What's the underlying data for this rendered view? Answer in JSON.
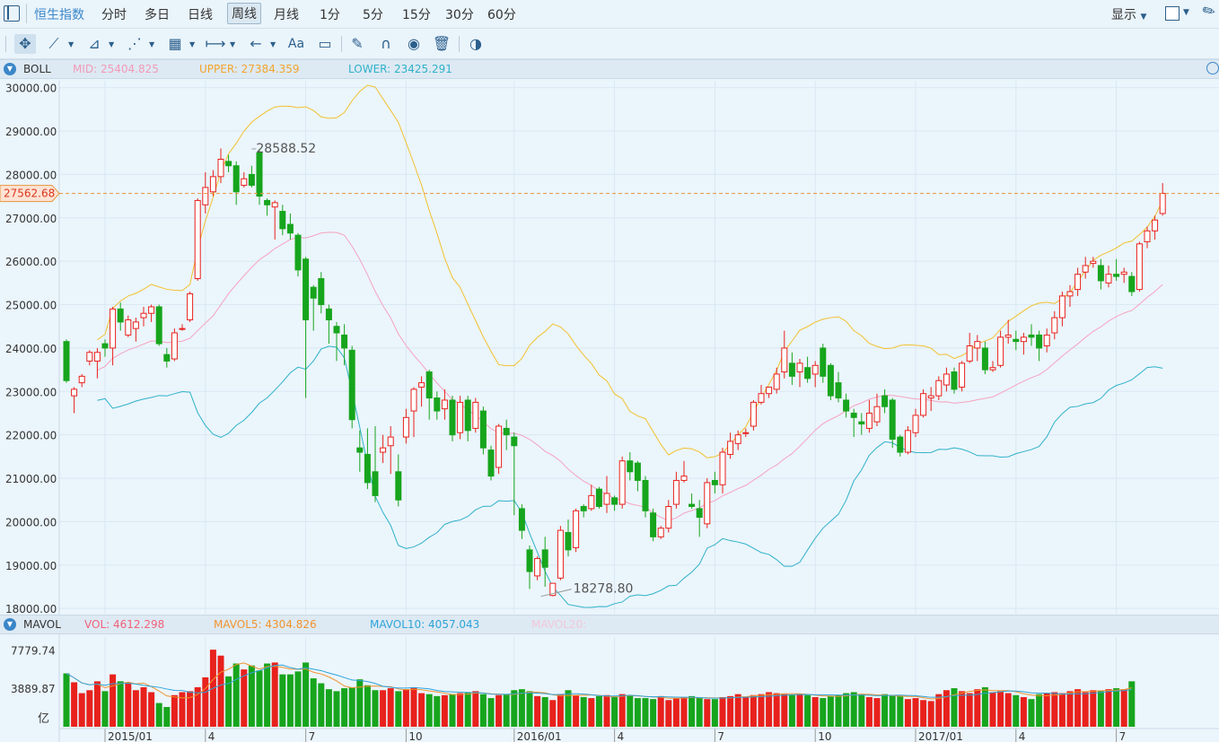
{
  "header": {
    "tabs": [
      {
        "label": "恒生指数",
        "active": false
      },
      {
        "label": "分时",
        "active": false
      },
      {
        "label": "多日",
        "active": false
      },
      {
        "label": "日线",
        "active": false
      },
      {
        "label": "周线",
        "active": true
      },
      {
        "label": "月线",
        "active": false
      },
      {
        "label": "1分",
        "active": false
      },
      {
        "label": "5分",
        "active": false
      },
      {
        "label": "15分",
        "active": false
      },
      {
        "label": "30分",
        "active": false
      },
      {
        "label": "60分",
        "active": false
      }
    ],
    "display_label": "显示"
  },
  "toolbar": {
    "text_tool_label": "Aa",
    "icons": [
      "move-icon",
      "line-icon",
      "polyline-icon",
      "wave-icon",
      "fibonacci-icon",
      "range-icon",
      "arrow-icon",
      "text-icon",
      "comment-icon",
      "pen-icon",
      "magnet-icon",
      "eye-icon",
      "trash-icon",
      "compare-icon"
    ]
  },
  "boll_legend": {
    "name": "BOLL",
    "mid": "MID: 25404.825",
    "upper": "UPPER: 27384.359",
    "lower": "LOWER: 23425.291"
  },
  "mavol_legend": {
    "name": "MAVOL",
    "vol": "VOL: 4612.298",
    "mavol5": "MAVOL5: 4304.826",
    "mavol10": "MAVOL10: 4057.043",
    "mavol20": "MAVOL20:"
  },
  "colors": {
    "up": "#e8211c",
    "down": "#17a51d",
    "mid": "#f5a3c0",
    "upper": "#f2c12e",
    "lower": "#2eb2c8",
    "mavol5": "#f2932e",
    "mavol10": "#2ea4d8"
  },
  "chart_data": {
    "type": "candlestick",
    "y_ticks": [
      "30000.00",
      "29000.00",
      "28000.00",
      "27000.00",
      "26000.00",
      "25000.00",
      "24000.00",
      "23000.00",
      "22000.00",
      "21000.00",
      "20000.00",
      "19000.00",
      "18000.00"
    ],
    "ylim": [
      17900,
      30200
    ],
    "x_ticks": [
      {
        "label": "2015/01",
        "index": 5
      },
      {
        "label": "4",
        "index": 18
      },
      {
        "label": "7",
        "index": 31
      },
      {
        "label": "10",
        "index": 44
      },
      {
        "label": "2016/01",
        "index": 58
      },
      {
        "label": "4",
        "index": 71
      },
      {
        "label": "7",
        "index": 84
      },
      {
        "label": "10",
        "index": 97
      },
      {
        "label": "2017/01",
        "index": 110
      },
      {
        "label": "4",
        "index": 123
      },
      {
        "label": "7",
        "index": 136
      }
    ],
    "current_price_label": "27562.68",
    "current_price": 27562.68,
    "high_label": "28588.52",
    "high_value": 28588.52,
    "high_index": 24,
    "low_label": "18278.80",
    "low_value": 18278.8,
    "low_index": 61,
    "candles": [
      [
        24150,
        23250,
        24200,
        23200
      ],
      [
        22900,
        23050,
        23100,
        22500
      ],
      [
        23200,
        23350,
        23400,
        23100
      ],
      [
        23700,
        23900,
        23950,
        23600
      ],
      [
        23700,
        23900,
        24000,
        23300
      ],
      [
        24100,
        24000,
        24200,
        23800
      ],
      [
        24000,
        24900,
        24950,
        23600
      ],
      [
        24900,
        24600,
        25050,
        24400
      ],
      [
        24300,
        24650,
        24750,
        24250
      ],
      [
        24450,
        24600,
        24700,
        24150
      ],
      [
        24700,
        24800,
        24950,
        24500
      ],
      [
        24800,
        24950,
        25000,
        24600
      ],
      [
        24950,
        24100,
        25000,
        24050
      ],
      [
        23850,
        23700,
        24000,
        23550
      ],
      [
        23750,
        24350,
        24450,
        23700
      ],
      [
        24450,
        24450,
        24550,
        24400
      ],
      [
        24650,
        25250,
        25300,
        24600
      ],
      [
        25600,
        27400,
        27450,
        25550
      ],
      [
        27300,
        27700,
        28050,
        27100
      ],
      [
        27600,
        27950,
        28100,
        27500
      ],
      [
        27950,
        28350,
        28600,
        27800
      ],
      [
        28300,
        28200,
        28450,
        28050
      ],
      [
        28200,
        27600,
        28300,
        27300
      ],
      [
        27750,
        27900,
        28050,
        27700
      ],
      [
        28000,
        27750,
        28200,
        27700
      ],
      [
        28500,
        27500,
        28589,
        27300
      ],
      [
        27400,
        27300,
        27450,
        27050
      ],
      [
        27250,
        27350,
        27400,
        26500
      ],
      [
        27150,
        26750,
        27300,
        26600
      ],
      [
        26850,
        26650,
        27100,
        26500
      ],
      [
        26600,
        25800,
        26650,
        25650
      ],
      [
        26050,
        24650,
        26100,
        22850
      ],
      [
        25400,
        25150,
        25450,
        24400
      ],
      [
        25600,
        25000,
        25750,
        24800
      ],
      [
        24900,
        24650,
        25000,
        24100
      ],
      [
        24500,
        24350,
        24600,
        23700
      ],
      [
        24300,
        24000,
        24550,
        23600
      ],
      [
        23950,
        22350,
        24050,
        22150
      ],
      [
        21700,
        21600,
        22100,
        21150
      ],
      [
        21550,
        20900,
        22150,
        20750
      ],
      [
        21150,
        20600,
        22200,
        20450
      ],
      [
        21600,
        21700,
        22000,
        21350
      ],
      [
        21750,
        21950,
        22200,
        21100
      ],
      [
        21150,
        20500,
        21550,
        20350
      ],
      [
        21950,
        22400,
        22600,
        21800
      ],
      [
        22550,
        23050,
        23100,
        21950
      ],
      [
        23100,
        23200,
        23350,
        22650
      ],
      [
        23450,
        22850,
        23500,
        22350
      ],
      [
        22850,
        22550,
        23000,
        22350
      ],
      [
        22600,
        22800,
        23050,
        22350
      ],
      [
        22800,
        22000,
        22900,
        21850
      ],
      [
        22050,
        22750,
        22900,
        21900
      ],
      [
        22800,
        22100,
        22900,
        21850
      ],
      [
        22150,
        22750,
        22850,
        22050
      ],
      [
        22550,
        21700,
        22650,
        21550
      ],
      [
        21650,
        21050,
        21750,
        20950
      ],
      [
        21250,
        22200,
        22250,
        21100
      ],
      [
        22150,
        22000,
        22350,
        21650
      ],
      [
        21950,
        21750,
        22050,
        20150
      ],
      [
        20300,
        19800,
        20400,
        19600
      ],
      [
        19350,
        18850,
        19450,
        18450
      ],
      [
        18750,
        19150,
        19200,
        18650
      ],
      [
        19350,
        18950,
        19650,
        18500
      ],
      [
        18300,
        18580,
        18590,
        18279
      ],
      [
        18700,
        19800,
        19900,
        18650
      ],
      [
        19750,
        19350,
        20050,
        19200
      ],
      [
        19400,
        20250,
        20300,
        19300
      ],
      [
        20350,
        20250,
        20400,
        20100
      ],
      [
        20300,
        20600,
        20850,
        20250
      ],
      [
        20750,
        20350,
        20800,
        20300
      ],
      [
        20400,
        20650,
        21050,
        20200
      ],
      [
        20550,
        20400,
        20600,
        20250
      ],
      [
        20400,
        21400,
        21500,
        20300
      ],
      [
        21400,
        21150,
        21600,
        20950
      ],
      [
        21350,
        20950,
        21400,
        20700
      ],
      [
        20950,
        20250,
        21050,
        20100
      ],
      [
        20200,
        19650,
        20300,
        19550
      ],
      [
        19650,
        19850,
        19900,
        19600
      ],
      [
        19850,
        20350,
        20500,
        19750
      ],
      [
        20400,
        20950,
        21150,
        20300
      ],
      [
        20950,
        21050,
        21400,
        20900
      ],
      [
        20400,
        20350,
        20650,
        20300
      ],
      [
        20300,
        20100,
        20500,
        19650
      ],
      [
        19950,
        20900,
        21000,
        19850
      ],
      [
        20950,
        20850,
        21150,
        20650
      ],
      [
        20850,
        21600,
        21700,
        20650
      ],
      [
        21550,
        21850,
        22050,
        21450
      ],
      [
        21800,
        22000,
        22100,
        21650
      ],
      [
        22050,
        22050,
        22150,
        21950
      ],
      [
        22200,
        22750,
        22800,
        22100
      ],
      [
        22750,
        22950,
        23150,
        22700
      ],
      [
        22950,
        23100,
        23100,
        22850
      ],
      [
        23050,
        23400,
        23550,
        22950
      ],
      [
        23450,
        24000,
        24400,
        23300
      ],
      [
        23650,
        23350,
        23900,
        23150
      ],
      [
        23450,
        23650,
        23750,
        23100
      ],
      [
        23550,
        23300,
        23800,
        23200
      ],
      [
        23400,
        23600,
        23700,
        23100
      ],
      [
        24000,
        23350,
        24100,
        23200
      ],
      [
        23600,
        22900,
        23650,
        22800
      ],
      [
        23200,
        22850,
        23450,
        22750
      ],
      [
        22800,
        22550,
        22950,
        22400
      ],
      [
        22500,
        22400,
        22600,
        21950
      ],
      [
        22300,
        22250,
        22500,
        22000
      ],
      [
        22150,
        22500,
        22800,
        22050
      ],
      [
        22300,
        22650,
        22950,
        22200
      ],
      [
        22900,
        22650,
        23050,
        22500
      ],
      [
        22800,
        21900,
        22850,
        21700
      ],
      [
        21950,
        21600,
        22000,
        21500
      ],
      [
        21600,
        22100,
        22200,
        21550
      ],
      [
        22050,
        22450,
        22600,
        21950
      ],
      [
        22450,
        22950,
        23050,
        22400
      ],
      [
        22850,
        22900,
        23100,
        22550
      ],
      [
        22900,
        23250,
        23350,
        22800
      ],
      [
        23150,
        23400,
        23550,
        23000
      ],
      [
        23450,
        23050,
        23550,
        22950
      ],
      [
        23100,
        23650,
        23700,
        23000
      ],
      [
        23700,
        24050,
        24350,
        23650
      ],
      [
        24000,
        24150,
        24300,
        23700
      ],
      [
        24000,
        23500,
        24150,
        23400
      ],
      [
        23500,
        23550,
        23700,
        23450
      ],
      [
        23600,
        24250,
        24400,
        23550
      ],
      [
        24250,
        24300,
        24650,
        24100
      ],
      [
        24200,
        24150,
        24400,
        23950
      ],
      [
        24150,
        24250,
        24350,
        23850
      ],
      [
        24300,
        24250,
        24550,
        24050
      ],
      [
        24300,
        24000,
        24400,
        23700
      ],
      [
        24050,
        24300,
        24450,
        23900
      ],
      [
        24350,
        24700,
        24850,
        24200
      ],
      [
        24700,
        25200,
        25300,
        24500
      ],
      [
        25200,
        25300,
        25450,
        24950
      ],
      [
        25350,
        25700,
        25850,
        25200
      ],
      [
        25750,
        25900,
        26100,
        25600
      ],
      [
        25950,
        26000,
        26100,
        25850
      ],
      [
        25900,
        25550,
        26050,
        25350
      ],
      [
        25500,
        25700,
        25900,
        25400
      ],
      [
        25700,
        25650,
        26050,
        25550
      ],
      [
        25700,
        25750,
        25850,
        25500
      ],
      [
        25650,
        25300,
        25750,
        25200
      ],
      [
        25350,
        26400,
        26450,
        25300
      ],
      [
        26450,
        26700,
        26800,
        26300
      ],
      [
        26700,
        26950,
        27050,
        26500
      ],
      [
        27100,
        27563,
        27800,
        27050
      ]
    ],
    "vol_ticks": [
      "7779.74",
      "3889.87"
    ],
    "vol_unit": "亿",
    "volume": [
      5400,
      4500,
      3400,
      3700,
      4600,
      3600,
      5300,
      4600,
      4500,
      3700,
      4000,
      3500,
      2400,
      2000,
      3200,
      3500,
      3600,
      4000,
      5000,
      7800,
      7200,
      5100,
      6400,
      5800,
      6200,
      5700,
      6400,
      6500,
      5300,
      5300,
      5600,
      6500,
      4900,
      4400,
      3800,
      3600,
      3900,
      4000,
      4800,
      4200,
      3700,
      3700,
      3900,
      3600,
      3800,
      4000,
      3400,
      3300,
      3100,
      3200,
      3300,
      3400,
      3500,
      3600,
      3300,
      2900,
      3200,
      3300,
      3700,
      3800,
      3600,
      3100,
      3000,
      2700,
      3300,
      3700,
      3200,
      3000,
      2900,
      3100,
      3200,
      3000,
      3300,
      3200,
      2900,
      2900,
      2800,
      3100,
      2700,
      2900,
      3000,
      3100,
      2900,
      2800,
      2800,
      3000,
      3100,
      3300,
      3000,
      3200,
      3300,
      3500,
      3400,
      3300,
      3200,
      3300,
      3200,
      3000,
      2900,
      3100,
      3200,
      3400,
      3500,
      3300,
      3000,
      2900,
      3300,
      3200,
      3100,
      2800,
      2900,
      2700,
      2600,
      3300,
      3700,
      3900,
      3600,
      3400,
      3800,
      4000,
      3500,
      3600,
      3400,
      3200,
      3000,
      2800,
      3300,
      3400,
      3500,
      3400,
      3600,
      3800,
      3500,
      3700,
      3600,
      3800,
      3900,
      3800,
      4600
    ],
    "ohlc_format": "[open, close, high, low]"
  }
}
